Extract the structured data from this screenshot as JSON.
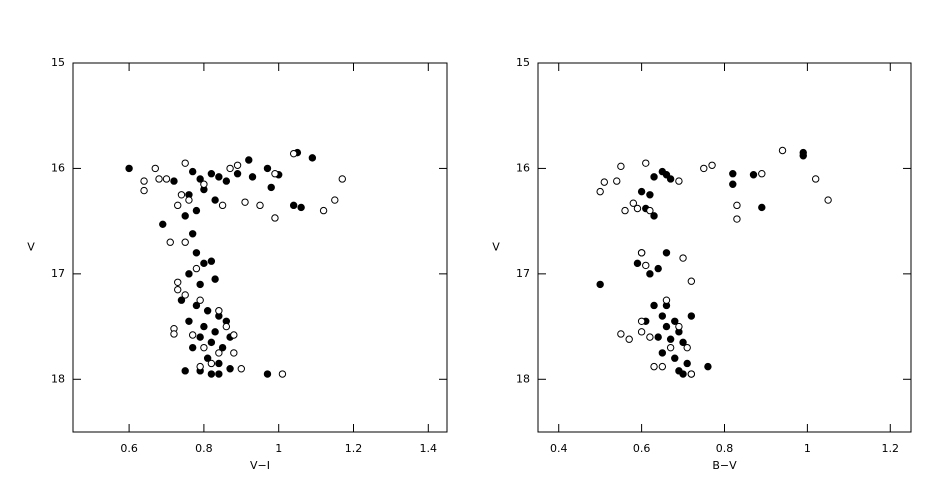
{
  "chart_data": [
    {
      "type": "scatter",
      "xlabel": "V−I",
      "ylabel": "V",
      "xlim": [
        0.45,
        1.45
      ],
      "ylim": [
        18.5,
        15
      ],
      "xticks": [
        0.6,
        0.8,
        1,
        1.2,
        1.4
      ],
      "yticks": [
        15,
        16,
        17,
        18
      ],
      "series": [
        {
          "color": "#000000",
          "filled": true,
          "x": [
            0.6,
            0.69,
            0.72,
            0.75,
            0.77,
            0.79,
            0.76,
            0.8,
            0.82,
            0.84,
            0.86,
            0.89,
            0.92,
            0.93,
            0.97,
            0.98,
            1.0,
            1.05,
            1.09,
            1.04,
            1.06,
            0.83,
            0.78,
            0.77,
            0.78,
            0.8,
            0.76,
            0.82,
            0.79,
            0.83,
            0.74,
            0.78,
            0.81,
            0.84,
            0.76,
            0.8,
            0.83,
            0.86,
            0.79,
            0.82,
            0.85,
            0.87,
            0.77,
            0.81,
            0.84,
            0.79,
            0.82,
            0.87,
            0.97,
            0.75,
            0.84
          ],
          "y": [
            16.0,
            16.53,
            16.12,
            16.45,
            16.03,
            16.1,
            16.25,
            16.2,
            16.05,
            16.08,
            16.12,
            16.05,
            15.92,
            16.08,
            16.0,
            16.18,
            16.06,
            15.85,
            15.9,
            16.35,
            16.37,
            16.3,
            16.4,
            16.62,
            16.8,
            16.9,
            17.0,
            16.88,
            17.1,
            17.05,
            17.25,
            17.3,
            17.35,
            17.4,
            17.45,
            17.5,
            17.55,
            17.45,
            17.6,
            17.65,
            17.7,
            17.6,
            17.7,
            17.8,
            17.85,
            17.92,
            17.95,
            17.9,
            17.95,
            17.92,
            17.95
          ]
        },
        {
          "color": "#000000",
          "filled": false,
          "x": [
            0.64,
            0.64,
            0.67,
            0.68,
            0.7,
            0.73,
            0.75,
            0.74,
            0.76,
            0.8,
            0.87,
            0.89,
            0.85,
            0.91,
            0.95,
            0.99,
            0.99,
            1.12,
            1.15,
            1.17,
            1.04,
            0.71,
            0.75,
            0.78,
            0.73,
            0.73,
            0.75,
            0.79,
            0.84,
            0.72,
            0.72,
            0.77,
            0.8,
            0.86,
            0.88,
            0.84,
            0.88,
            0.9,
            0.79,
            1.01,
            0.82
          ],
          "y": [
            16.12,
            16.21,
            16.0,
            16.1,
            16.1,
            16.35,
            15.95,
            16.25,
            16.3,
            16.15,
            16.0,
            15.97,
            16.35,
            16.32,
            16.35,
            16.05,
            16.47,
            16.4,
            16.3,
            16.1,
            15.86,
            16.7,
            16.7,
            16.95,
            17.08,
            17.15,
            17.2,
            17.25,
            17.35,
            17.52,
            17.57,
            17.58,
            17.7,
            17.5,
            17.58,
            17.75,
            17.75,
            17.9,
            17.88,
            17.95,
            17.85
          ]
        }
      ]
    },
    {
      "type": "scatter",
      "xlabel": "B−V",
      "ylabel": "V",
      "xlim": [
        0.35,
        1.25
      ],
      "ylim": [
        18.5,
        15
      ],
      "xticks": [
        0.4,
        0.6,
        0.8,
        1,
        1.2
      ],
      "yticks": [
        15,
        16,
        17,
        18
      ],
      "series": [
        {
          "color": "#000000",
          "filled": true,
          "x": [
            0.5,
            0.59,
            0.6,
            0.6,
            0.61,
            0.62,
            0.63,
            0.63,
            0.64,
            0.65,
            0.66,
            0.67,
            0.66,
            0.62,
            0.63,
            0.65,
            0.66,
            0.68,
            0.64,
            0.67,
            0.69,
            0.7,
            0.72,
            0.65,
            0.68,
            0.71,
            0.69,
            0.7,
            0.72,
            0.76,
            0.82,
            0.82,
            0.87,
            0.89,
            0.99,
            0.99,
            0.61,
            0.66
          ],
          "y": [
            17.1,
            16.9,
            16.22,
            16.8,
            16.38,
            16.25,
            16.45,
            16.08,
            16.95,
            16.03,
            16.06,
            16.1,
            16.8,
            17.0,
            17.3,
            17.4,
            17.5,
            17.45,
            17.6,
            17.62,
            17.55,
            17.65,
            17.4,
            17.75,
            17.8,
            17.85,
            17.92,
            17.95,
            17.95,
            17.88,
            16.05,
            16.15,
            16.06,
            16.37,
            15.85,
            15.88,
            17.45,
            17.3
          ]
        },
        {
          "color": "#000000",
          "filled": false,
          "x": [
            0.5,
            0.51,
            0.54,
            0.55,
            0.56,
            0.58,
            0.59,
            0.61,
            0.62,
            0.69,
            0.75,
            0.77,
            0.83,
            0.83,
            0.89,
            0.94,
            1.02,
            1.05,
            0.55,
            0.57,
            0.6,
            0.6,
            0.62,
            0.66,
            0.67,
            0.69,
            0.7,
            0.71,
            0.72,
            0.72,
            0.65,
            0.63,
            0.6,
            0.61
          ],
          "y": [
            16.22,
            16.13,
            16.12,
            15.98,
            16.4,
            16.33,
            16.38,
            15.95,
            16.4,
            16.12,
            16.0,
            15.97,
            16.35,
            16.48,
            16.05,
            15.83,
            16.1,
            16.3,
            17.57,
            17.62,
            17.45,
            17.55,
            17.6,
            17.25,
            17.7,
            17.5,
            16.85,
            17.7,
            17.07,
            17.95,
            17.88,
            17.88,
            16.8,
            16.92
          ]
        }
      ]
    }
  ]
}
